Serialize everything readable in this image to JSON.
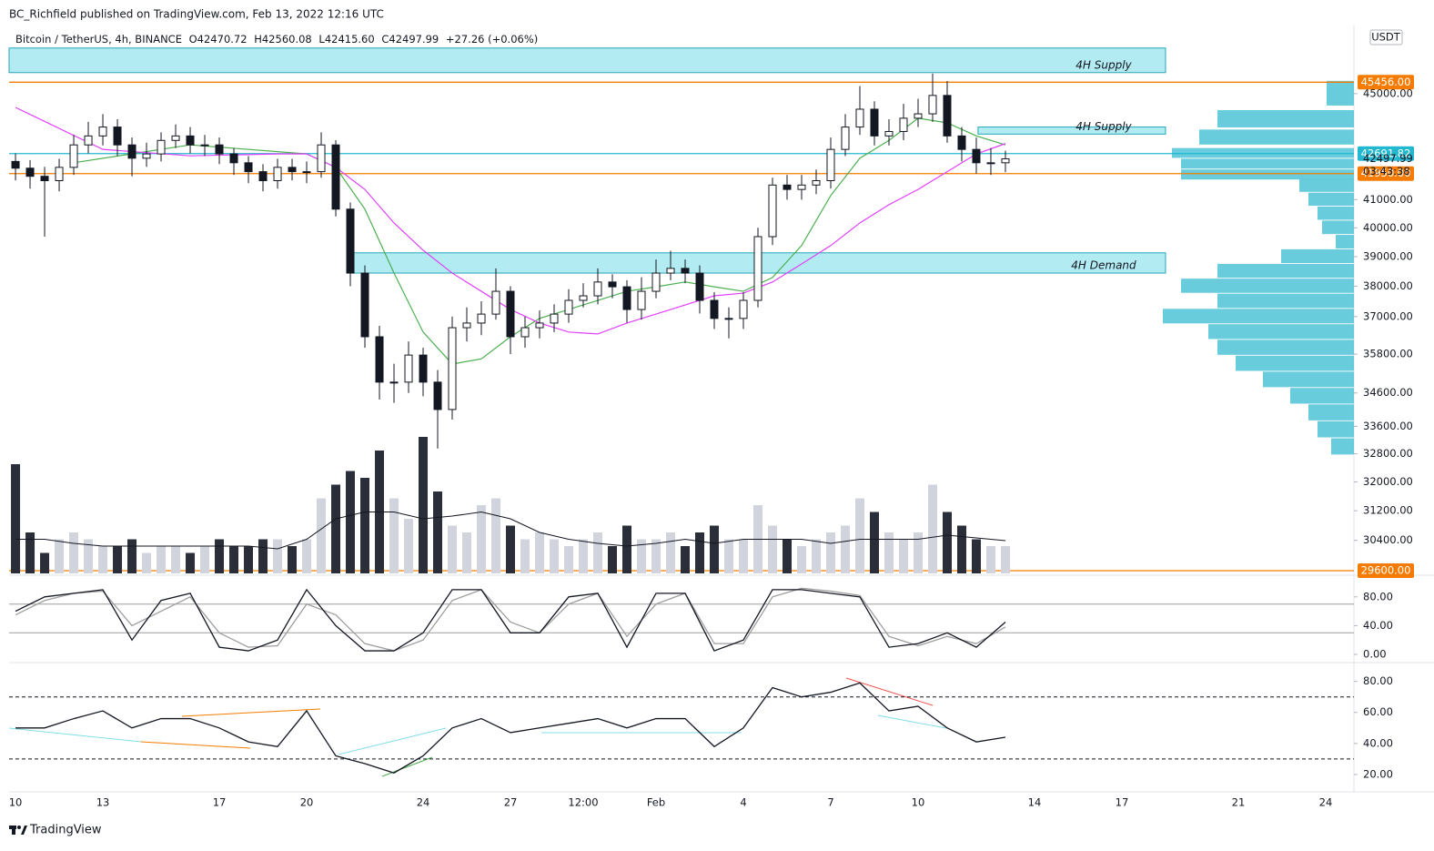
{
  "header": {
    "publisher": "BC_Richfield published on TradingView.com, Feb 13, 2022 12:16 UTC",
    "symbol": "Bitcoin / TetherUS, 4h, BINANCE",
    "ohlc": [
      "O42470.72",
      "H42560.08",
      "L42415.60",
      "C42497.99",
      "+27.26 (+0.06%)"
    ]
  },
  "footer": {
    "brand": "TradingView"
  },
  "chart_data": [
    {
      "type": "candlestick",
      "log": true,
      "currency": "USDT",
      "x": [
        0,
        0.5,
        1,
        1.5,
        2,
        2.5,
        3,
        3.5,
        4,
        4.5,
        5,
        5.5,
        6,
        6.5,
        7,
        7.5,
        8,
        8.5,
        9,
        9.5,
        10,
        10.5,
        11,
        11.5,
        12,
        12.5,
        13,
        13.5,
        14,
        14.5,
        15,
        15.5,
        16,
        16.5,
        17,
        17.5,
        18,
        18.5,
        19,
        19.5,
        20,
        20.5,
        21,
        21.5,
        22,
        22.5,
        23,
        23.5,
        24,
        24.5,
        25,
        25.5,
        26,
        26.5,
        27,
        27.5,
        28,
        28.5,
        29,
        29.5,
        30,
        30.5,
        31,
        31.5,
        32,
        32.5,
        33,
        33.5,
        34
      ],
      "open": [
        42400,
        42150,
        41850,
        41690,
        42180,
        43020,
        43360,
        43700,
        43020,
        42520,
        42680,
        43190,
        43360,
        43020,
        43020,
        42680,
        42350,
        42020,
        41690,
        42180,
        42020,
        42020,
        43020,
        40660,
        38440,
        36350,
        34930,
        34930,
        35770,
        34930,
        34100,
        36640,
        36790,
        37080,
        37830,
        36350,
        36640,
        36790,
        37080,
        37530,
        37680,
        38140,
        37980,
        37230,
        37830,
        38440,
        38600,
        38440,
        37530,
        36940,
        36940,
        37530,
        39690,
        41530,
        41370,
        41530,
        41690,
        42850,
        43700,
        44390,
        43360,
        43530,
        44040,
        44210,
        44930,
        43360,
        42850,
        42350,
        42350
      ],
      "high": [
        42700,
        42450,
        42200,
        42500,
        43400,
        43900,
        44200,
        44000,
        43300,
        43100,
        43500,
        43800,
        43700,
        43400,
        43300,
        42900,
        42600,
        42300,
        42500,
        42500,
        42400,
        43500,
        43200,
        40900,
        38700,
        36700,
        35500,
        36200,
        36000,
        35300,
        37000,
        37300,
        37500,
        38600,
        38000,
        37000,
        37200,
        37400,
        37900,
        38100,
        38600,
        38400,
        38200,
        38300,
        38900,
        39200,
        38900,
        38700,
        37800,
        37300,
        37800,
        40000,
        41800,
        41900,
        41900,
        42100,
        43300,
        44200,
        45300,
        44700,
        44000,
        44600,
        44800,
        45800,
        45500,
        43700,
        43300,
        42900,
        42800
      ],
      "low": [
        41700,
        41400,
        39690,
        41300,
        41900,
        42700,
        43000,
        42600,
        41850,
        42200,
        42400,
        42900,
        42700,
        42600,
        42300,
        41900,
        41600,
        41300,
        41400,
        41700,
        41600,
        41800,
        40400,
        38000,
        36000,
        34400,
        34300,
        34600,
        34500,
        32950,
        33800,
        36200,
        36400,
        36900,
        35800,
        36000,
        36300,
        36500,
        36800,
        37300,
        37400,
        37600,
        36800,
        36900,
        37600,
        38200,
        38100,
        37100,
        36600,
        36300,
        36600,
        37300,
        39400,
        41000,
        41000,
        41200,
        41400,
        42600,
        43400,
        43000,
        43000,
        43200,
        43700,
        43900,
        43100,
        42400,
        41950,
        41900,
        42000
      ],
      "close": [
        42150,
        41850,
        41690,
        42180,
        43020,
        43360,
        43700,
        43020,
        42520,
        42680,
        43190,
        43360,
        43020,
        43020,
        42680,
        42350,
        42020,
        41690,
        42180,
        42020,
        42020,
        43020,
        40660,
        38440,
        36350,
        34930,
        34930,
        35770,
        34930,
        34100,
        36640,
        36790,
        37080,
        37830,
        36350,
        36640,
        36790,
        37080,
        37530,
        37680,
        38140,
        37980,
        37230,
        37830,
        38440,
        38600,
        38440,
        37530,
        36940,
        36940,
        37530,
        39690,
        41530,
        41370,
        41530,
        41690,
        42850,
        43700,
        44390,
        43360,
        43530,
        44040,
        44210,
        44930,
        43360,
        42850,
        42350,
        42350,
        42497.99
      ],
      "xlim": [
        -0.22,
        45.97
      ],
      "xticks": [
        {
          "value": 0,
          "label": "10"
        },
        {
          "value": 3,
          "label": "13"
        },
        {
          "value": 7,
          "label": "17"
        },
        {
          "value": 10,
          "label": "20"
        },
        {
          "value": 14,
          "label": "24"
        },
        {
          "value": 17,
          "label": "27"
        },
        {
          "value": 19.5,
          "label": "12:00"
        },
        {
          "value": 22,
          "label": "Feb"
        },
        {
          "value": 25,
          "label": "4"
        },
        {
          "value": 28,
          "label": "7"
        },
        {
          "value": 31,
          "label": "10"
        },
        {
          "value": 35,
          "label": "14"
        },
        {
          "value": 38,
          "label": "17"
        },
        {
          "value": 42,
          "label": "21"
        },
        {
          "value": 45,
          "label": "24"
        }
      ],
      "ylim": [
        29600,
        47700
      ],
      "yticks": [
        {
          "value": 45000,
          "label": "45000.00"
        },
        {
          "value": 41000,
          "label": "41000.00"
        },
        {
          "value": 40000,
          "label": "40000.00"
        },
        {
          "value": 39000,
          "label": "39000.00"
        },
        {
          "value": 38000,
          "label": "38000.00"
        },
        {
          "value": 37000,
          "label": "37000.00"
        },
        {
          "value": 35800,
          "label": "35800.00"
        },
        {
          "value": 34600,
          "label": "34600.00"
        },
        {
          "value": 33600,
          "label": "33600.00"
        },
        {
          "value": 32800,
          "label": "32800.00"
        },
        {
          "value": 32000,
          "label": "32000.00"
        },
        {
          "value": 31200,
          "label": "31200.00"
        },
        {
          "value": 30400,
          "label": "30400.00"
        }
      ],
      "overlays": [
        {
          "color": "#4caf50",
          "x": [
            2,
            6,
            10,
            11,
            12,
            13,
            14,
            15,
            16,
            17,
            18,
            19,
            20,
            21,
            22,
            23,
            24,
            25,
            26,
            27,
            28,
            29,
            30,
            31,
            32,
            33,
            34
          ],
          "values": [
            42350,
            43020,
            42680,
            42180,
            40660,
            38440,
            36500,
            35490,
            35650,
            36350,
            36940,
            37230,
            37530,
            37830,
            37980,
            38140,
            37980,
            37830,
            38290,
            39380,
            41150,
            42520,
            43190,
            44040,
            43860,
            43360,
            43020
          ]
        },
        {
          "color": "#e040fb",
          "x": [
            0,
            3,
            6,
            9,
            10,
            11,
            12,
            13,
            14,
            15,
            16,
            17,
            18,
            19,
            20,
            21,
            22,
            23,
            24,
            25,
            26,
            27,
            28,
            29,
            30,
            31,
            32,
            33,
            34
          ],
          "values": [
            44460,
            42850,
            42610,
            42680,
            42680,
            42180,
            41370,
            40170,
            39220,
            38440,
            37830,
            37230,
            36790,
            36500,
            36440,
            36790,
            37080,
            37380,
            37680,
            37770,
            38140,
            38750,
            39380,
            40170,
            40820,
            41370,
            42020,
            42680,
            43070
          ]
        }
      ],
      "levels": [
        {
          "value": 45456,
          "label": "45456.00",
          "color": "#f57c00"
        },
        {
          "value": 42691.82,
          "label": "42691.82",
          "color": "#22b8cf"
        },
        {
          "value": 41950,
          "label": "41950.00",
          "color": "#f57c00"
        },
        {
          "value": 29600,
          "label": "29600.00",
          "color": "#f57c00"
        }
      ],
      "zones": [
        {
          "label": "4H Supply",
          "x": [
            -0.22,
            39.5
          ],
          "y": [
            45840,
            46840
          ]
        },
        {
          "label": "4H Supply",
          "x": [
            33.06,
            39.5
          ],
          "y": [
            43430,
            43700
          ]
        },
        {
          "label": "4H Demand",
          "x": [
            11.6,
            39.5
          ],
          "y": [
            38440,
            39130
          ]
        }
      ],
      "last_price": {
        "value": 42497.99,
        "countdown": "03:43:38"
      },
      "volume": {
        "values": [
          80,
          30,
          15,
          25,
          30,
          25,
          20,
          20,
          25,
          15,
          20,
          20,
          15,
          20,
          25,
          20,
          20,
          25,
          25,
          20,
          25,
          55,
          65,
          75,
          70,
          90,
          55,
          40,
          100,
          60,
          35,
          30,
          50,
          55,
          35,
          25,
          30,
          25,
          20,
          25,
          30,
          20,
          35,
          25,
          25,
          30,
          20,
          30,
          35,
          25,
          25,
          50,
          35,
          25,
          20,
          25,
          30,
          35,
          55,
          45,
          30,
          25,
          30,
          65,
          45,
          35,
          25,
          20,
          20
        ],
        "ma": {
          "x": [
            0,
            1,
            2,
            3,
            4,
            5,
            6,
            7,
            8,
            9,
            10,
            11,
            12,
            13,
            14,
            15,
            16,
            17,
            18,
            19,
            20,
            21,
            22,
            23,
            24,
            25,
            26,
            27,
            28,
            29,
            30,
            31,
            32,
            33,
            34
          ],
          "values": [
            25,
            25,
            22,
            20,
            20,
            20,
            20,
            20,
            20,
            18,
            25,
            40,
            45,
            45,
            40,
            42,
            45,
            40,
            30,
            25,
            22,
            20,
            22,
            25,
            22,
            25,
            25,
            25,
            22,
            25,
            25,
            25,
            28,
            26,
            24
          ]
        }
      },
      "volume_profile": {
        "color": "#4dc3d6",
        "prices": [
          45000,
          44000,
          43300,
          42700,
          42300,
          41900,
          41500,
          41000,
          40500,
          40000,
          39500,
          39000,
          38500,
          38000,
          37500,
          37000,
          36500,
          36000,
          35500,
          35000,
          34500,
          34000,
          33500,
          33000
        ],
        "values": [
          30,
          150,
          170,
          200,
          190,
          190,
          60,
          50,
          40,
          35,
          20,
          80,
          150,
          190,
          150,
          210,
          160,
          150,
          130,
          100,
          70,
          50,
          40,
          25
        ]
      }
    },
    {
      "type": "line",
      "x": [
        0,
        1,
        2,
        3,
        4,
        5,
        6,
        7,
        8,
        9,
        10,
        11,
        12,
        13,
        14,
        15,
        16,
        17,
        18,
        19,
        20,
        21,
        22,
        23,
        24,
        25,
        26,
        27,
        28,
        29,
        30,
        31,
        32,
        33,
        34
      ],
      "series": [
        {
          "color": "#9e9e9e",
          "values": [
            55,
            75,
            85,
            88,
            40,
            60,
            80,
            30,
            10,
            12,
            70,
            55,
            15,
            5,
            20,
            75,
            90,
            45,
            30,
            70,
            85,
            25,
            70,
            85,
            15,
            15,
            80,
            92,
            88,
            82,
            25,
            12,
            25,
            15,
            38
          ]
        },
        {
          "color": "#131722",
          "values": [
            60,
            80,
            85,
            90,
            20,
            75,
            85,
            10,
            5,
            20,
            90,
            40,
            5,
            5,
            30,
            90,
            90,
            30,
            30,
            80,
            85,
            10,
            85,
            85,
            5,
            20,
            90,
            90,
            85,
            80,
            10,
            15,
            30,
            10,
            45
          ]
        }
      ],
      "ylim": [
        0,
        100
      ],
      "yticks": [
        {
          "value": 80,
          "label": "80.00"
        },
        {
          "value": 40,
          "label": "40.00"
        },
        {
          "value": 0,
          "label": "0.00"
        }
      ],
      "bands": [
        30,
        70
      ]
    },
    {
      "type": "line",
      "x": [
        0,
        1,
        2,
        3,
        4,
        5,
        6,
        7,
        8,
        9,
        10,
        11,
        12,
        13,
        14,
        15,
        16,
        17,
        18,
        19,
        20,
        21,
        22,
        23,
        24,
        25,
        26,
        27,
        28,
        29,
        30,
        31,
        32,
        33,
        34
      ],
      "series": [
        {
          "color": "#131722",
          "values": [
            50,
            50,
            56,
            61,
            50,
            56,
            56,
            50,
            41,
            38,
            61,
            32,
            27,
            21,
            32,
            50,
            56,
            47,
            50,
            53,
            56,
            50,
            56,
            56,
            38,
            50,
            76,
            70,
            73,
            79,
            61,
            64,
            50,
            41,
            44
          ]
        }
      ],
      "ylim": [
        10,
        88
      ],
      "yticks": [
        {
          "value": 80,
          "label": "80.00"
        },
        {
          "value": 60,
          "label": "60.00"
        },
        {
          "value": 40,
          "label": "40.00"
        },
        {
          "value": 20,
          "label": "20.00"
        }
      ],
      "bands": [
        30,
        70
      ],
      "dashed_bands": true
    }
  ]
}
